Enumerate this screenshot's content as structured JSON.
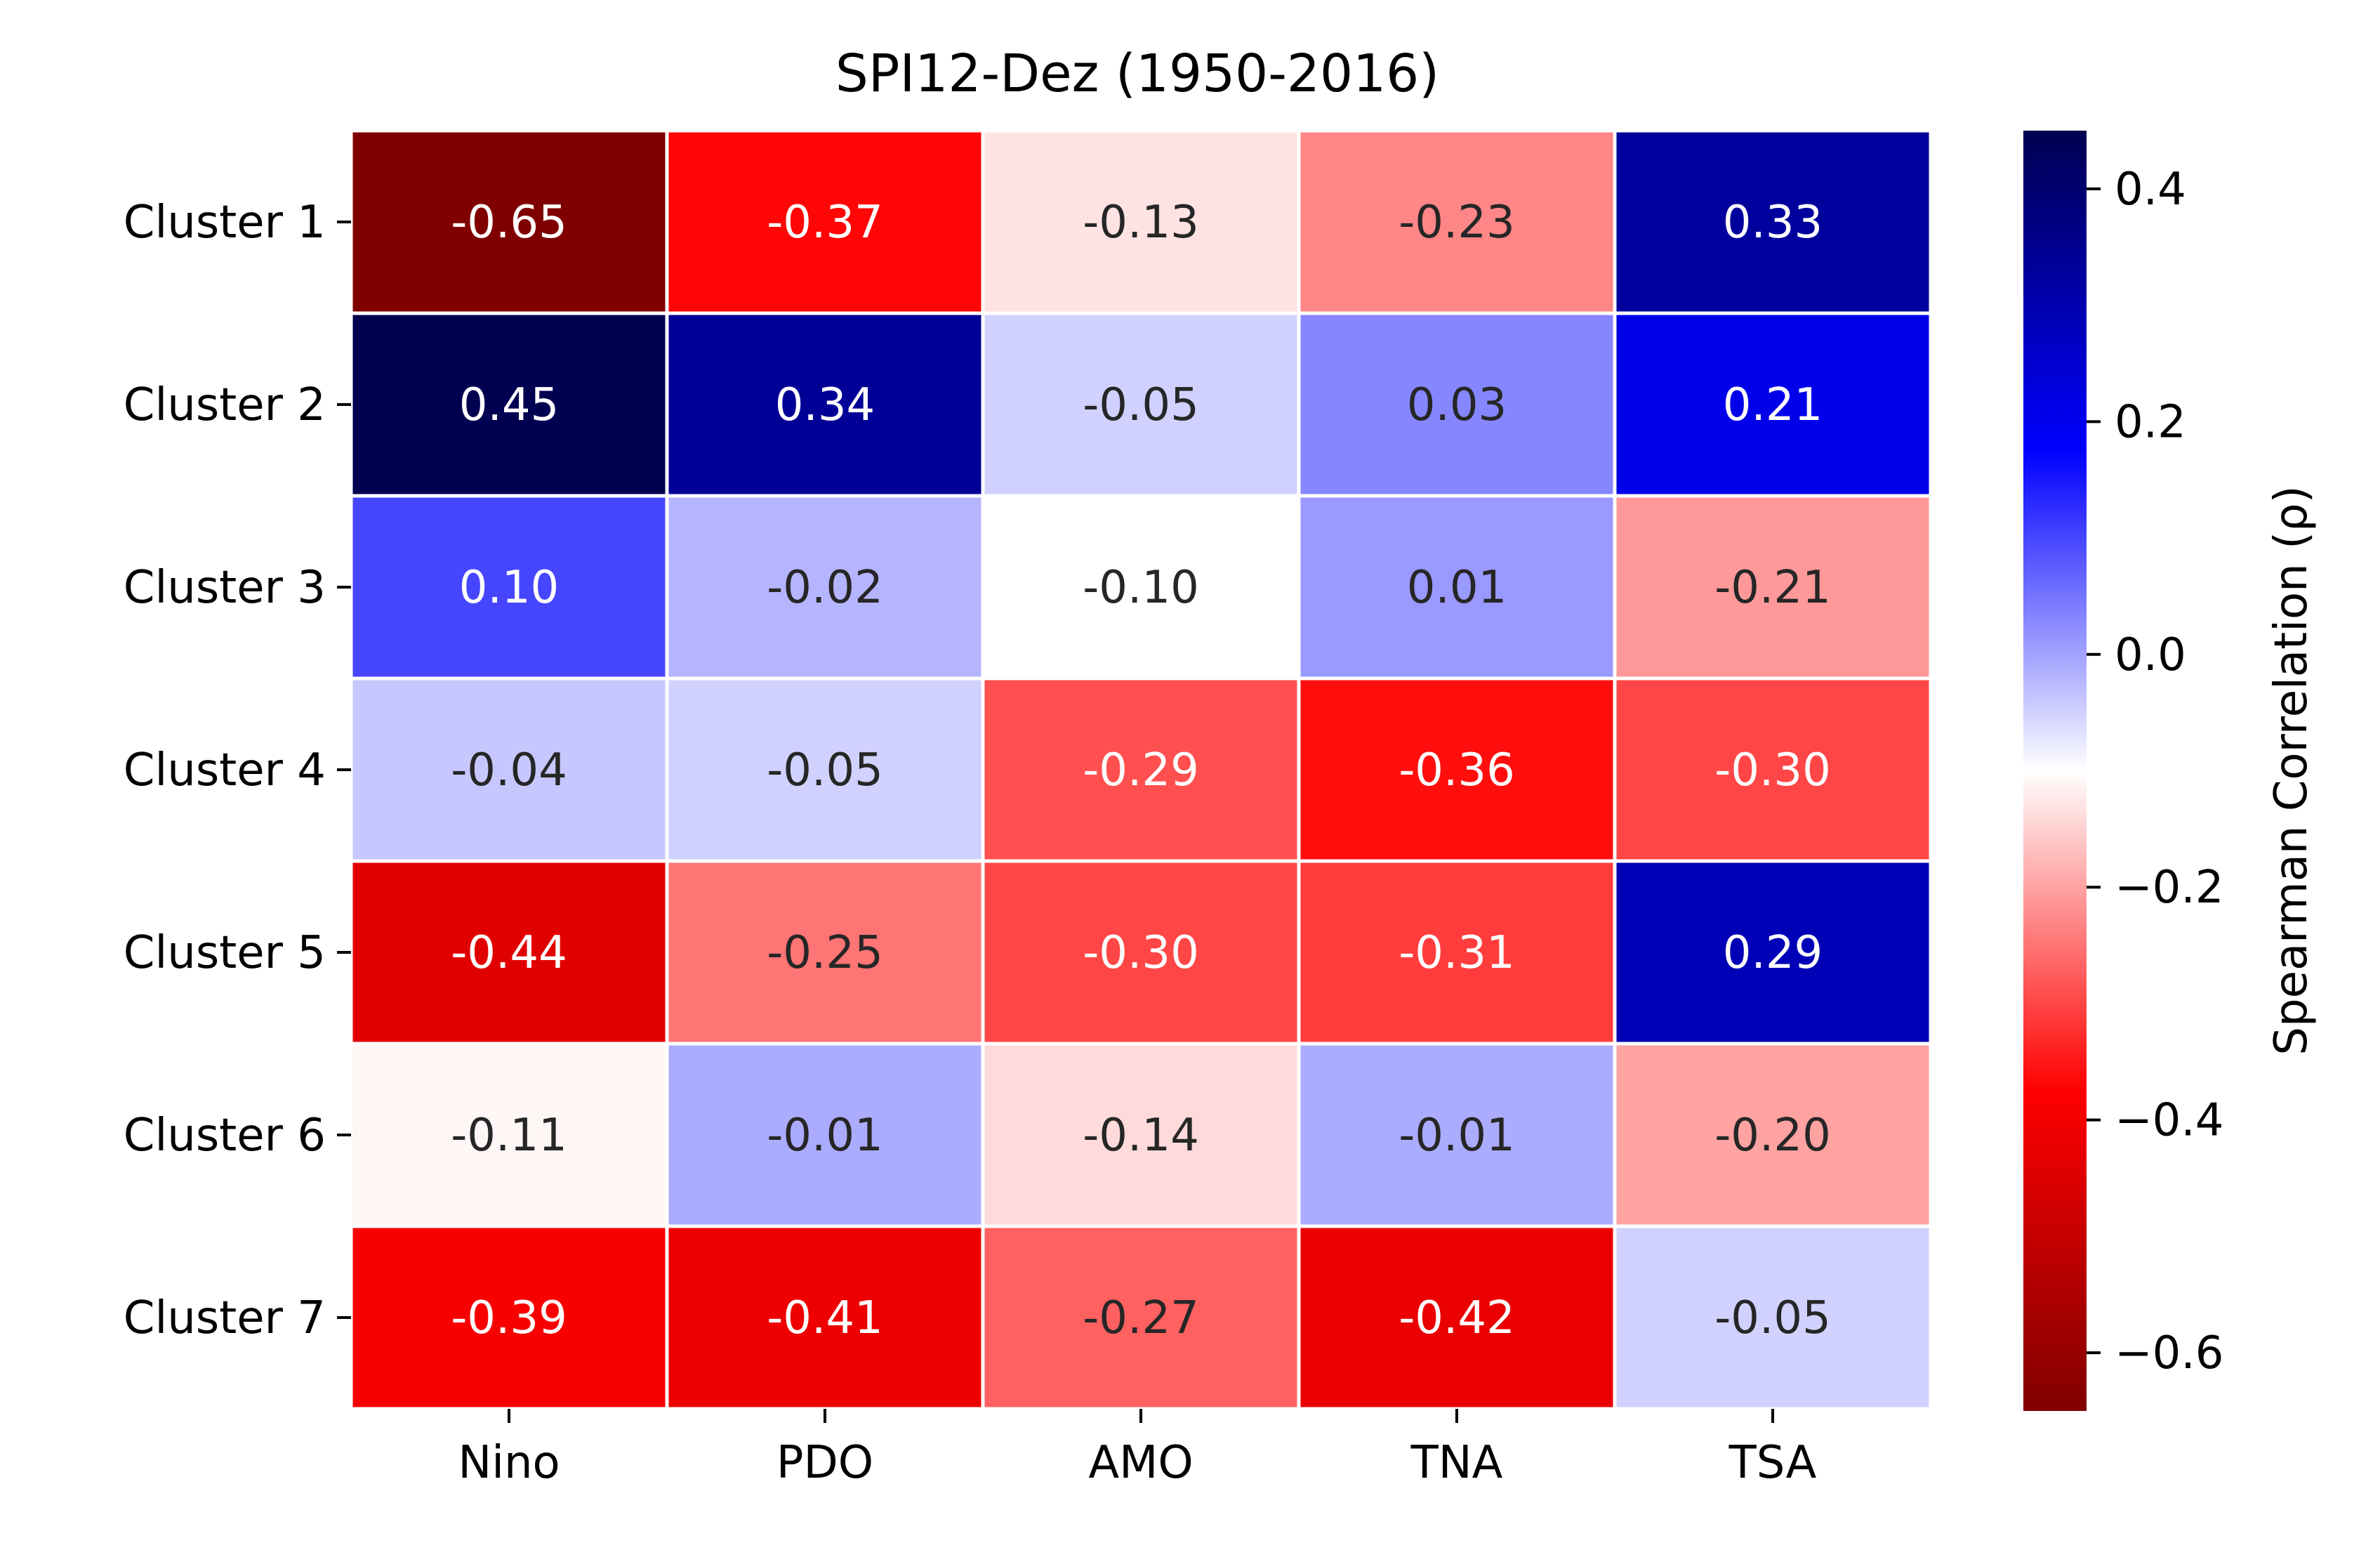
{
  "chart_data": {
    "type": "heatmap",
    "title": "SPI12-Dez (1950-2016)",
    "rows": [
      "Cluster 1",
      "Cluster 2",
      "Cluster 3",
      "Cluster 4",
      "Cluster 5",
      "Cluster 6",
      "Cluster 7"
    ],
    "columns": [
      "Nino",
      "PDO",
      "AMO",
      "TNA",
      "TSA"
    ],
    "values": [
      [
        -0.65,
        -0.37,
        -0.13,
        -0.23,
        0.33
      ],
      [
        0.45,
        0.34,
        -0.05,
        0.03,
        0.21
      ],
      [
        0.1,
        -0.02,
        -0.1,
        0.01,
        -0.21
      ],
      [
        -0.04,
        -0.05,
        -0.29,
        -0.36,
        -0.3
      ],
      [
        -0.44,
        -0.25,
        -0.3,
        -0.31,
        0.29
      ],
      [
        -0.11,
        -0.01,
        -0.14,
        -0.01,
        -0.2
      ],
      [
        -0.39,
        -0.41,
        -0.27,
        -0.42,
        -0.05
      ]
    ],
    "value_labels": [
      [
        "-0.65",
        "-0.37",
        "-0.13",
        "-0.23",
        "0.33"
      ],
      [
        "0.45",
        "0.34",
        "-0.05",
        "0.03",
        "0.21"
      ],
      [
        "0.10",
        "-0.02",
        "-0.10",
        "0.01",
        "-0.21"
      ],
      [
        "-0.04",
        "-0.05",
        "-0.29",
        "-0.36",
        "-0.30"
      ],
      [
        "-0.44",
        "-0.25",
        "-0.30",
        "-0.31",
        "0.29"
      ],
      [
        "-0.11",
        "-0.01",
        "-0.14",
        "-0.01",
        "-0.20"
      ],
      [
        "-0.39",
        "-0.41",
        "-0.27",
        "-0.42",
        "-0.05"
      ]
    ],
    "colorbar": {
      "label": "Spearman Correlation (ρ)",
      "range": [
        -0.65,
        0.45
      ],
      "ticks": [
        0.4,
        0.2,
        0.0,
        -0.2,
        -0.4,
        -0.6
      ],
      "tick_labels": [
        "0.4",
        "0.2",
        "0.0",
        "−0.2",
        "−0.4",
        "−0.6"
      ],
      "colormap": "seismic_r",
      "color_stops": [
        "#800000",
        "#ff0000",
        "#ffffff",
        "#0000ff",
        "#000050"
      ]
    }
  }
}
